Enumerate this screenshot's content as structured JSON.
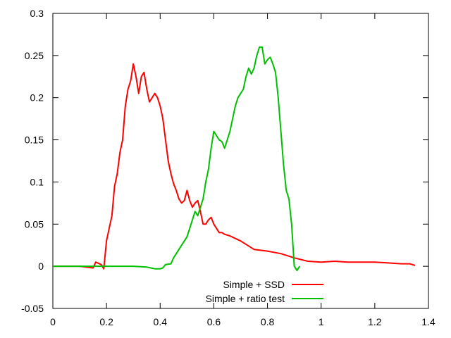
{
  "chart_data": {
    "type": "line",
    "title": "",
    "xlabel": "",
    "ylabel": "",
    "xlim": [
      0,
      1.4
    ],
    "ylim": [
      -0.05,
      0.3
    ],
    "xticks": [
      "0",
      "0.2",
      "0.4",
      "0.6",
      "0.8",
      "1",
      "1.2",
      "1.4"
    ],
    "yticks": [
      "-0.05",
      "0",
      "0.05",
      "0.1",
      "0.15",
      "0.2",
      "0.25",
      "0.3"
    ],
    "grid": false,
    "legend_position": "bottom-center",
    "series": [
      {
        "name": "Simple + SSD",
        "color": "#ff0000",
        "points": [
          [
            0.0,
            0.0
          ],
          [
            0.1,
            0.0
          ],
          [
            0.15,
            -0.002
          ],
          [
            0.16,
            0.005
          ],
          [
            0.18,
            0.002
          ],
          [
            0.19,
            -0.003
          ],
          [
            0.2,
            0.03
          ],
          [
            0.22,
            0.06
          ],
          [
            0.23,
            0.095
          ],
          [
            0.24,
            0.11
          ],
          [
            0.25,
            0.135
          ],
          [
            0.26,
            0.15
          ],
          [
            0.27,
            0.19
          ],
          [
            0.28,
            0.21
          ],
          [
            0.29,
            0.22
          ],
          [
            0.3,
            0.24
          ],
          [
            0.31,
            0.225
          ],
          [
            0.32,
            0.205
          ],
          [
            0.33,
            0.225
          ],
          [
            0.34,
            0.23
          ],
          [
            0.35,
            0.21
          ],
          [
            0.36,
            0.195
          ],
          [
            0.37,
            0.2
          ],
          [
            0.38,
            0.205
          ],
          [
            0.39,
            0.2
          ],
          [
            0.4,
            0.19
          ],
          [
            0.41,
            0.175
          ],
          [
            0.42,
            0.15
          ],
          [
            0.43,
            0.125
          ],
          [
            0.44,
            0.11
          ],
          [
            0.45,
            0.098
          ],
          [
            0.46,
            0.09
          ],
          [
            0.47,
            0.08
          ],
          [
            0.48,
            0.075
          ],
          [
            0.49,
            0.078
          ],
          [
            0.5,
            0.09
          ],
          [
            0.51,
            0.078
          ],
          [
            0.52,
            0.07
          ],
          [
            0.53,
            0.075
          ],
          [
            0.54,
            0.078
          ],
          [
            0.55,
            0.065
          ],
          [
            0.56,
            0.05
          ],
          [
            0.57,
            0.05
          ],
          [
            0.58,
            0.055
          ],
          [
            0.59,
            0.058
          ],
          [
            0.6,
            0.05
          ],
          [
            0.61,
            0.045
          ],
          [
            0.62,
            0.04
          ],
          [
            0.63,
            0.04
          ],
          [
            0.64,
            0.038
          ],
          [
            0.66,
            0.036
          ],
          [
            0.7,
            0.03
          ],
          [
            0.75,
            0.02
          ],
          [
            0.8,
            0.018
          ],
          [
            0.85,
            0.015
          ],
          [
            0.9,
            0.01
          ],
          [
            0.95,
            0.006
          ],
          [
            1.0,
            0.005
          ],
          [
            1.05,
            0.006
          ],
          [
            1.1,
            0.005
          ],
          [
            1.15,
            0.005
          ],
          [
            1.2,
            0.005
          ],
          [
            1.25,
            0.004
          ],
          [
            1.3,
            0.003
          ],
          [
            1.33,
            0.003
          ],
          [
            1.35,
            0.001
          ]
        ]
      },
      {
        "name": "Simple + ratio test",
        "color": "#00c000",
        "points": [
          [
            0.0,
            0.0
          ],
          [
            0.1,
            0.0
          ],
          [
            0.2,
            0.0
          ],
          [
            0.3,
            0.0
          ],
          [
            0.35,
            -0.001
          ],
          [
            0.38,
            -0.003
          ],
          [
            0.4,
            -0.003
          ],
          [
            0.41,
            -0.002
          ],
          [
            0.42,
            0.002
          ],
          [
            0.44,
            0.003
          ],
          [
            0.45,
            0.01
          ],
          [
            0.47,
            0.02
          ],
          [
            0.48,
            0.025
          ],
          [
            0.49,
            0.03
          ],
          [
            0.5,
            0.035
          ],
          [
            0.51,
            0.045
          ],
          [
            0.52,
            0.055
          ],
          [
            0.53,
            0.065
          ],
          [
            0.54,
            0.06
          ],
          [
            0.55,
            0.07
          ],
          [
            0.56,
            0.08
          ],
          [
            0.57,
            0.1
          ],
          [
            0.58,
            0.115
          ],
          [
            0.59,
            0.14
          ],
          [
            0.6,
            0.16
          ],
          [
            0.61,
            0.155
          ],
          [
            0.62,
            0.15
          ],
          [
            0.63,
            0.148
          ],
          [
            0.64,
            0.14
          ],
          [
            0.65,
            0.15
          ],
          [
            0.66,
            0.16
          ],
          [
            0.67,
            0.175
          ],
          [
            0.68,
            0.19
          ],
          [
            0.69,
            0.2
          ],
          [
            0.7,
            0.205
          ],
          [
            0.71,
            0.21
          ],
          [
            0.72,
            0.225
          ],
          [
            0.73,
            0.235
          ],
          [
            0.74,
            0.228
          ],
          [
            0.75,
            0.235
          ],
          [
            0.76,
            0.25
          ],
          [
            0.77,
            0.26
          ],
          [
            0.78,
            0.26
          ],
          [
            0.79,
            0.24
          ],
          [
            0.8,
            0.245
          ],
          [
            0.81,
            0.248
          ],
          [
            0.82,
            0.24
          ],
          [
            0.83,
            0.23
          ],
          [
            0.84,
            0.2
          ],
          [
            0.85,
            0.16
          ],
          [
            0.86,
            0.12
          ],
          [
            0.87,
            0.09
          ],
          [
            0.88,
            0.08
          ],
          [
            0.89,
            0.05
          ],
          [
            0.9,
            0.0
          ],
          [
            0.91,
            -0.005
          ],
          [
            0.92,
            0.0
          ]
        ]
      }
    ]
  }
}
